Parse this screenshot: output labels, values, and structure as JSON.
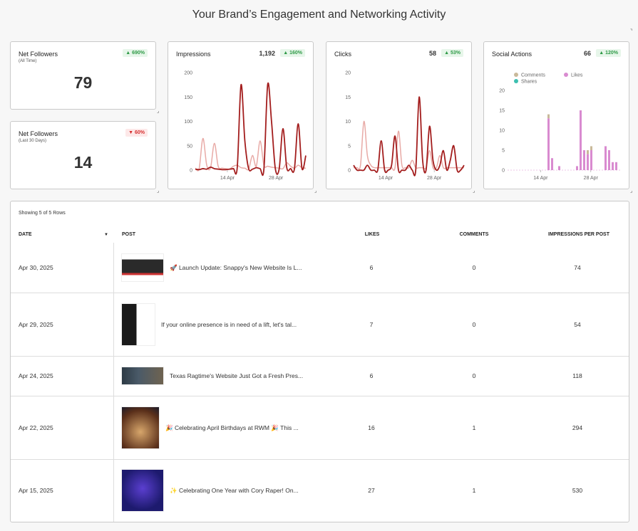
{
  "page": {
    "title": "Your Brand’s Engagement and Networking Activity"
  },
  "cards": {
    "followers_all": {
      "title": "Net Followers",
      "subtitle": "(All Time)",
      "value": "79",
      "badge": "▲ 690%"
    },
    "followers_30": {
      "title": "Net Followers",
      "subtitle": "(Last 30 Days)",
      "value": "14",
      "badge": "▼ 60%"
    },
    "impressions": {
      "title": "Impressions",
      "value": "1,192",
      "badge": "▲ 160%"
    },
    "clicks": {
      "title": "Clicks",
      "value": "58",
      "badge": "▲ 53%"
    },
    "social": {
      "title": "Social Actions",
      "value": "66",
      "badge": "▲ 120%"
    }
  },
  "colors": {
    "primary_line": "#a31d1d",
    "secondary_line": "#e8aaa6",
    "likes": "#d98bd0",
    "comments": "#c9b99a",
    "shares": "#3cbfb0",
    "up": "#2e9a46",
    "down": "#d62f2f"
  },
  "chart_data": [
    {
      "type": "line",
      "title": "Impressions",
      "x_ticks": [
        "14 Apr",
        "28 Apr"
      ],
      "y_ticks": [
        "0",
        "50",
        "100",
        "150",
        "200"
      ],
      "ylim": [
        0,
        200
      ],
      "series": [
        {
          "values": [
            2,
            1,
            3,
            2,
            6,
            3,
            2,
            1,
            1,
            2,
            3,
            5,
            175,
            60,
            3,
            2,
            5,
            3,
            2,
            176,
            100,
            3,
            2,
            85,
            5,
            3,
            2,
            95,
            3,
            30
          ]
        },
        {
          "values": [
            4,
            3,
            65,
            10,
            5,
            55,
            8,
            4,
            3,
            2,
            8,
            10,
            5,
            4,
            2,
            30,
            8,
            60,
            10,
            8,
            6,
            5,
            4,
            3,
            15,
            8,
            4,
            10,
            5,
            4
          ]
        }
      ]
    },
    {
      "type": "line",
      "title": "Clicks",
      "x_ticks": [
        "14 Apr",
        "28 Apr"
      ],
      "y_ticks": [
        "0",
        "5",
        "10",
        "15",
        "20"
      ],
      "ylim": [
        0,
        20
      ],
      "series": [
        {
          "values": [
            1,
            0,
            0,
            0,
            1,
            0,
            0,
            0,
            6,
            0,
            0,
            1,
            7,
            0,
            0,
            0,
            1,
            0,
            0,
            15,
            2,
            0,
            9,
            2,
            0,
            1,
            4,
            0,
            2,
            5,
            0,
            0,
            1
          ]
        },
        {
          "values": [
            0.5,
            0.5,
            1,
            10,
            3,
            1,
            0.5,
            0.5,
            0.5,
            0.5,
            0.5,
            0.5,
            0.5,
            8,
            1,
            0.5,
            0.5,
            2,
            0.5,
            0.5,
            0.5,
            0.5,
            4,
            0.5,
            0.5,
            3,
            0.5,
            0.5,
            0.5,
            0.5,
            0.5,
            0.5,
            0.5
          ]
        }
      ]
    },
    {
      "type": "bar",
      "title": "Social Actions",
      "x_ticks": [
        "14 Apr",
        "28 Apr"
      ],
      "y_ticks": [
        "0",
        "5",
        "10",
        "15",
        "20"
      ],
      "ylim": [
        0,
        20
      ],
      "legend": [
        "Comments",
        "Likes",
        "Shares"
      ],
      "series": [
        {
          "name": "Likes",
          "values": [
            0,
            0,
            0,
            0,
            0,
            0,
            0,
            0,
            0,
            0,
            0,
            13,
            3,
            0,
            1,
            0,
            0,
            0,
            0,
            1,
            15,
            5,
            4,
            5,
            0,
            0,
            0,
            6,
            5,
            2,
            2,
            0
          ]
        },
        {
          "name": "Comments",
          "values": [
            0,
            0,
            0,
            0,
            0,
            0,
            0,
            0,
            0,
            0,
            0,
            1,
            0,
            0,
            0,
            0,
            0,
            0,
            0,
            0,
            0,
            0,
            1,
            1,
            0,
            0,
            0,
            0,
            0,
            0,
            0,
            0
          ]
        },
        {
          "name": "Shares",
          "values": [
            0,
            0,
            0,
            0,
            0,
            0,
            0,
            0,
            0,
            0,
            0,
            0,
            0,
            0,
            0,
            0,
            0,
            0,
            0,
            0,
            0,
            0,
            0,
            0,
            0,
            0,
            0,
            0,
            0,
            0,
            0,
            0
          ]
        }
      ]
    }
  ],
  "table": {
    "showing": "Showing 5 of 5 Rows",
    "headers": {
      "date": "DATE",
      "post": "POST",
      "likes": "LIKES",
      "comments": "COMMENTS",
      "impressions": "IMPRESSIONS PER POST"
    },
    "rows": [
      {
        "date": "Apr 30, 2025",
        "post": "🚀 Launch Update: Snappy's New Website Is L...",
        "likes": "6",
        "comments": "0",
        "impressions": "74"
      },
      {
        "date": "Apr 29, 2025",
        "post": "If your online presence is in need of a lift, let's tal...",
        "likes": "7",
        "comments": "0",
        "impressions": "54"
      },
      {
        "date": "Apr 24, 2025",
        "post": "Texas Ragtime's Website Just Got a Fresh Pres...",
        "likes": "6",
        "comments": "0",
        "impressions": "118"
      },
      {
        "date": "Apr 22, 2025",
        "post": "🎉 Celebrating April Birthdays at RWM 🎉 This ...",
        "likes": "16",
        "comments": "1",
        "impressions": "294"
      },
      {
        "date": "Apr 15, 2025",
        "post": "✨ Celebrating One Year with Cory Raper! On...",
        "likes": "27",
        "comments": "1",
        "impressions": "530"
      }
    ]
  }
}
